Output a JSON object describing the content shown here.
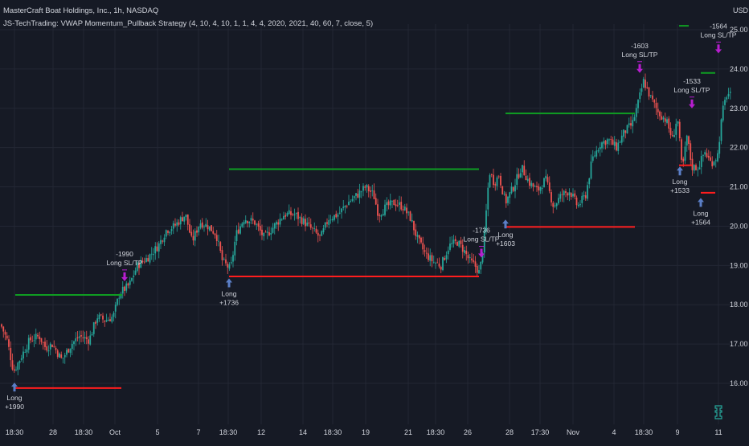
{
  "header": {
    "title": "MasterCraft Boat Holdings, Inc., 1h, NASDAQ",
    "indicator": "JS-TechTrading: VWAP Momentum_Pullback Strategy (4, 10, 4, 10, 1, 1, 4, 4, 2020, 2021, 40, 60, 7, close, 5)",
    "currency": "USD"
  },
  "colors": {
    "background": "#161a25",
    "grid": "#232734",
    "up": "#26a69a",
    "down": "#ef5350",
    "stop": "#ff1d1d",
    "target": "#0f9d22",
    "long_arrow": "#5b7fc7",
    "exit_arrow": "#b71ecf",
    "text": "#d1d4dc"
  },
  "chart_data": {
    "type": "candlestick",
    "ylim": [
      15.4,
      25.3
    ],
    "y_ticks": [
      "25.00",
      "24.00",
      "23.00",
      "22.00",
      "21.00",
      "20.00",
      "19.00",
      "18.00",
      "17.00",
      "16.00"
    ],
    "x_ticks": [
      "18:30",
      "28",
      "18:30",
      "Oct",
      "5",
      "7",
      "18:30",
      "12",
      "14",
      "18:30",
      "19",
      "21",
      "18:30",
      "26",
      "28",
      "17:30",
      "Nov",
      "4",
      "18:30",
      "9",
      "11"
    ],
    "anchors": [
      {
        "t": 0,
        "v": 17.6
      },
      {
        "t": 10,
        "v": 17.1
      },
      {
        "t": 18,
        "v": 16.3
      },
      {
        "t": 28,
        "v": 16.7
      },
      {
        "t": 38,
        "v": 17.1
      },
      {
        "t": 50,
        "v": 17.2
      },
      {
        "t": 58,
        "v": 16.9
      },
      {
        "t": 66,
        "v": 17.0
      },
      {
        "t": 78,
        "v": 16.6
      },
      {
        "t": 90,
        "v": 17.0
      },
      {
        "t": 100,
        "v": 17.2
      },
      {
        "t": 112,
        "v": 17.1
      },
      {
        "t": 122,
        "v": 17.7
      },
      {
        "t": 132,
        "v": 17.6
      },
      {
        "t": 142,
        "v": 17.7
      },
      {
        "t": 150,
        "v": 18.3
      },
      {
        "t": 162,
        "v": 18.5
      },
      {
        "t": 172,
        "v": 19.0
      },
      {
        "t": 185,
        "v": 19.2
      },
      {
        "t": 198,
        "v": 19.5
      },
      {
        "t": 208,
        "v": 19.9
      },
      {
        "t": 218,
        "v": 20.0
      },
      {
        "t": 232,
        "v": 20.3
      },
      {
        "t": 240,
        "v": 19.6
      },
      {
        "t": 250,
        "v": 20.1
      },
      {
        "t": 260,
        "v": 20.0
      },
      {
        "t": 270,
        "v": 19.8
      },
      {
        "t": 278,
        "v": 19.1
      },
      {
        "t": 288,
        "v": 18.9
      },
      {
        "t": 295,
        "v": 19.8
      },
      {
        "t": 305,
        "v": 20.2
      },
      {
        "t": 318,
        "v": 20.1
      },
      {
        "t": 330,
        "v": 19.7
      },
      {
        "t": 342,
        "v": 20.0
      },
      {
        "t": 355,
        "v": 20.3
      },
      {
        "t": 368,
        "v": 20.3
      },
      {
        "t": 380,
        "v": 20.1
      },
      {
        "t": 390,
        "v": 19.9
      },
      {
        "t": 400,
        "v": 19.7
      },
      {
        "t": 410,
        "v": 20.2
      },
      {
        "t": 422,
        "v": 20.3
      },
      {
        "t": 434,
        "v": 20.6
      },
      {
        "t": 446,
        "v": 20.8
      },
      {
        "t": 456,
        "v": 21.0
      },
      {
        "t": 466,
        "v": 20.8
      },
      {
        "t": 472,
        "v": 20.3
      },
      {
        "t": 482,
        "v": 20.5
      },
      {
        "t": 492,
        "v": 20.6
      },
      {
        "t": 502,
        "v": 20.5
      },
      {
        "t": 512,
        "v": 20.2
      },
      {
        "t": 520,
        "v": 19.7
      },
      {
        "t": 530,
        "v": 19.3
      },
      {
        "t": 540,
        "v": 19.1
      },
      {
        "t": 550,
        "v": 19.0
      },
      {
        "t": 560,
        "v": 19.5
      },
      {
        "t": 570,
        "v": 19.6
      },
      {
        "t": 578,
        "v": 19.4
      },
      {
        "t": 586,
        "v": 19.1
      },
      {
        "t": 592,
        "v": 19.0
      },
      {
        "t": 598,
        "v": 18.8
      },
      {
        "t": 604,
        "v": 19.8
      },
      {
        "t": 610,
        "v": 21.4
      },
      {
        "t": 616,
        "v": 21.1
      },
      {
        "t": 622,
        "v": 21.3
      },
      {
        "t": 630,
        "v": 20.6
      },
      {
        "t": 640,
        "v": 21.0
      },
      {
        "t": 650,
        "v": 21.5
      },
      {
        "t": 660,
        "v": 21.1
      },
      {
        "t": 670,
        "v": 20.9
      },
      {
        "t": 680,
        "v": 21.2
      },
      {
        "t": 690,
        "v": 20.5
      },
      {
        "t": 700,
        "v": 20.8
      },
      {
        "t": 710,
        "v": 20.9
      },
      {
        "t": 720,
        "v": 20.5
      },
      {
        "t": 730,
        "v": 20.8
      },
      {
        "t": 738,
        "v": 21.7
      },
      {
        "t": 748,
        "v": 22.1
      },
      {
        "t": 758,
        "v": 22.2
      },
      {
        "t": 768,
        "v": 22.0
      },
      {
        "t": 778,
        "v": 22.4
      },
      {
        "t": 788,
        "v": 22.6
      },
      {
        "t": 796,
        "v": 23.2
      },
      {
        "t": 802,
        "v": 23.7
      },
      {
        "t": 810,
        "v": 23.3
      },
      {
        "t": 820,
        "v": 22.9
      },
      {
        "t": 830,
        "v": 22.7
      },
      {
        "t": 838,
        "v": 22.2
      },
      {
        "t": 844,
        "v": 22.8
      },
      {
        "t": 850,
        "v": 21.4
      },
      {
        "t": 856,
        "v": 22.3
      },
      {
        "t": 862,
        "v": 21.5
      },
      {
        "t": 870,
        "v": 21.5
      },
      {
        "t": 878,
        "v": 21.9
      },
      {
        "t": 886,
        "v": 21.6
      },
      {
        "t": 894,
        "v": 21.8
      },
      {
        "t": 900,
        "v": 22.9
      },
      {
        "t": 906,
        "v": 23.4
      },
      {
        "t": 911,
        "v": 23.3
      }
    ],
    "levels": [
      {
        "kind": "target",
        "x0": 19,
        "x1": 152,
        "v": 18.25
      },
      {
        "kind": "stop",
        "x0": 19,
        "x1": 151,
        "v": 15.88
      },
      {
        "kind": "target",
        "x0": 285,
        "x1": 596,
        "v": 21.45
      },
      {
        "kind": "stop",
        "x0": 285,
        "x1": 596,
        "v": 18.72
      },
      {
        "kind": "target",
        "x0": 629,
        "x1": 790,
        "v": 22.87
      },
      {
        "kind": "stop",
        "x0": 629,
        "x1": 790,
        "v": 19.98
      },
      {
        "kind": "stop",
        "x0": 845,
        "x1": 861,
        "v": 21.55
      },
      {
        "kind": "stop",
        "x0": 872,
        "x1": 890,
        "v": 20.85
      },
      {
        "kind": "target",
        "x0": 845,
        "x1": 857,
        "v": 25.1
      },
      {
        "kind": "target",
        "x0": 872,
        "x1": 890,
        "v": 23.9
      }
    ],
    "entries": [
      {
        "x": 18,
        "v": 16.1,
        "label": "Long",
        "value": "+1990"
      },
      {
        "x": 285,
        "v": 18.75,
        "label": "Long",
        "value": "+1736"
      },
      {
        "x": 629,
        "v": 20.25,
        "label": "Long",
        "value": "+1603"
      },
      {
        "x": 846,
        "v": 21.6,
        "label": "Long",
        "value": "+1533"
      },
      {
        "x": 872,
        "v": 20.8,
        "label": "Long",
        "value": "+1564"
      }
    ],
    "exits": [
      {
        "x": 155,
        "v": 18.6,
        "label": "Long SL/TP",
        "value": "-1990"
      },
      {
        "x": 599,
        "v": 19.2,
        "label": "Long SL/TP",
        "value": "-1736"
      },
      {
        "x": 796,
        "v": 23.9,
        "label": "Long SL/TP",
        "value": "-1603"
      },
      {
        "x": 861,
        "v": 23.0,
        "label": "Long SL/TP",
        "value": "-1533"
      },
      {
        "x": 894,
        "v": 24.4,
        "label": "Long SL/TP",
        "value": "-1564"
      }
    ]
  }
}
